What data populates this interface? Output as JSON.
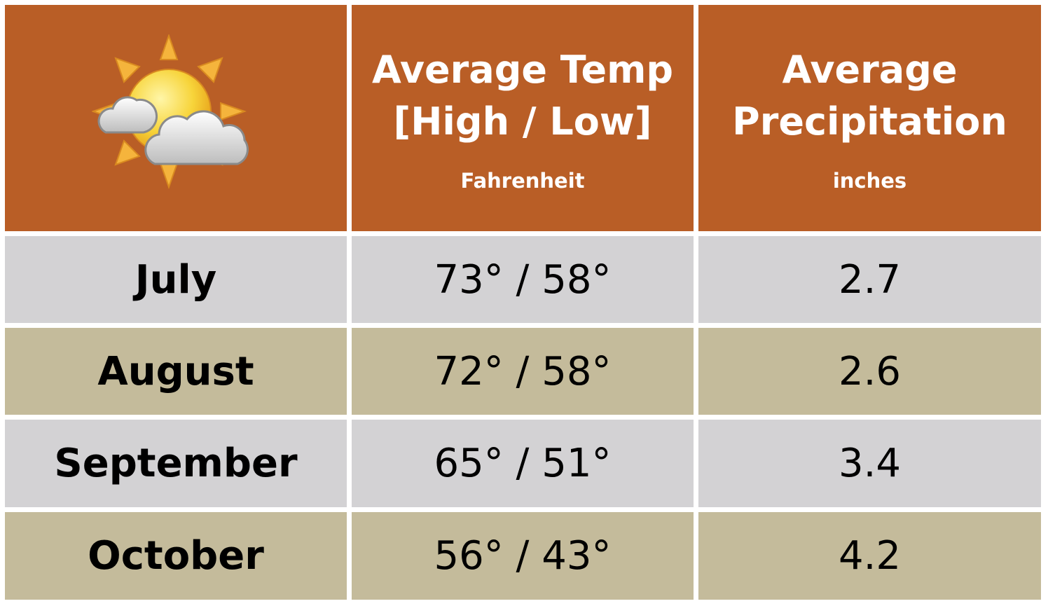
{
  "table": {
    "header": {
      "temp": {
        "title_lines": [
          "Average Temp",
          "[High / Low]"
        ],
        "unit": "Fahrenheit"
      },
      "precip": {
        "title_lines": [
          "Average",
          "Precipitation"
        ],
        "unit": "inches"
      }
    },
    "rows": [
      [
        "July",
        "73° / 58°",
        "2.7"
      ],
      [
        "August",
        "72° / 58°",
        "2.6"
      ],
      [
        "September",
        "65° / 51°",
        "3.4"
      ],
      [
        "October",
        "56° / 43°",
        "4.2"
      ]
    ]
  }
}
